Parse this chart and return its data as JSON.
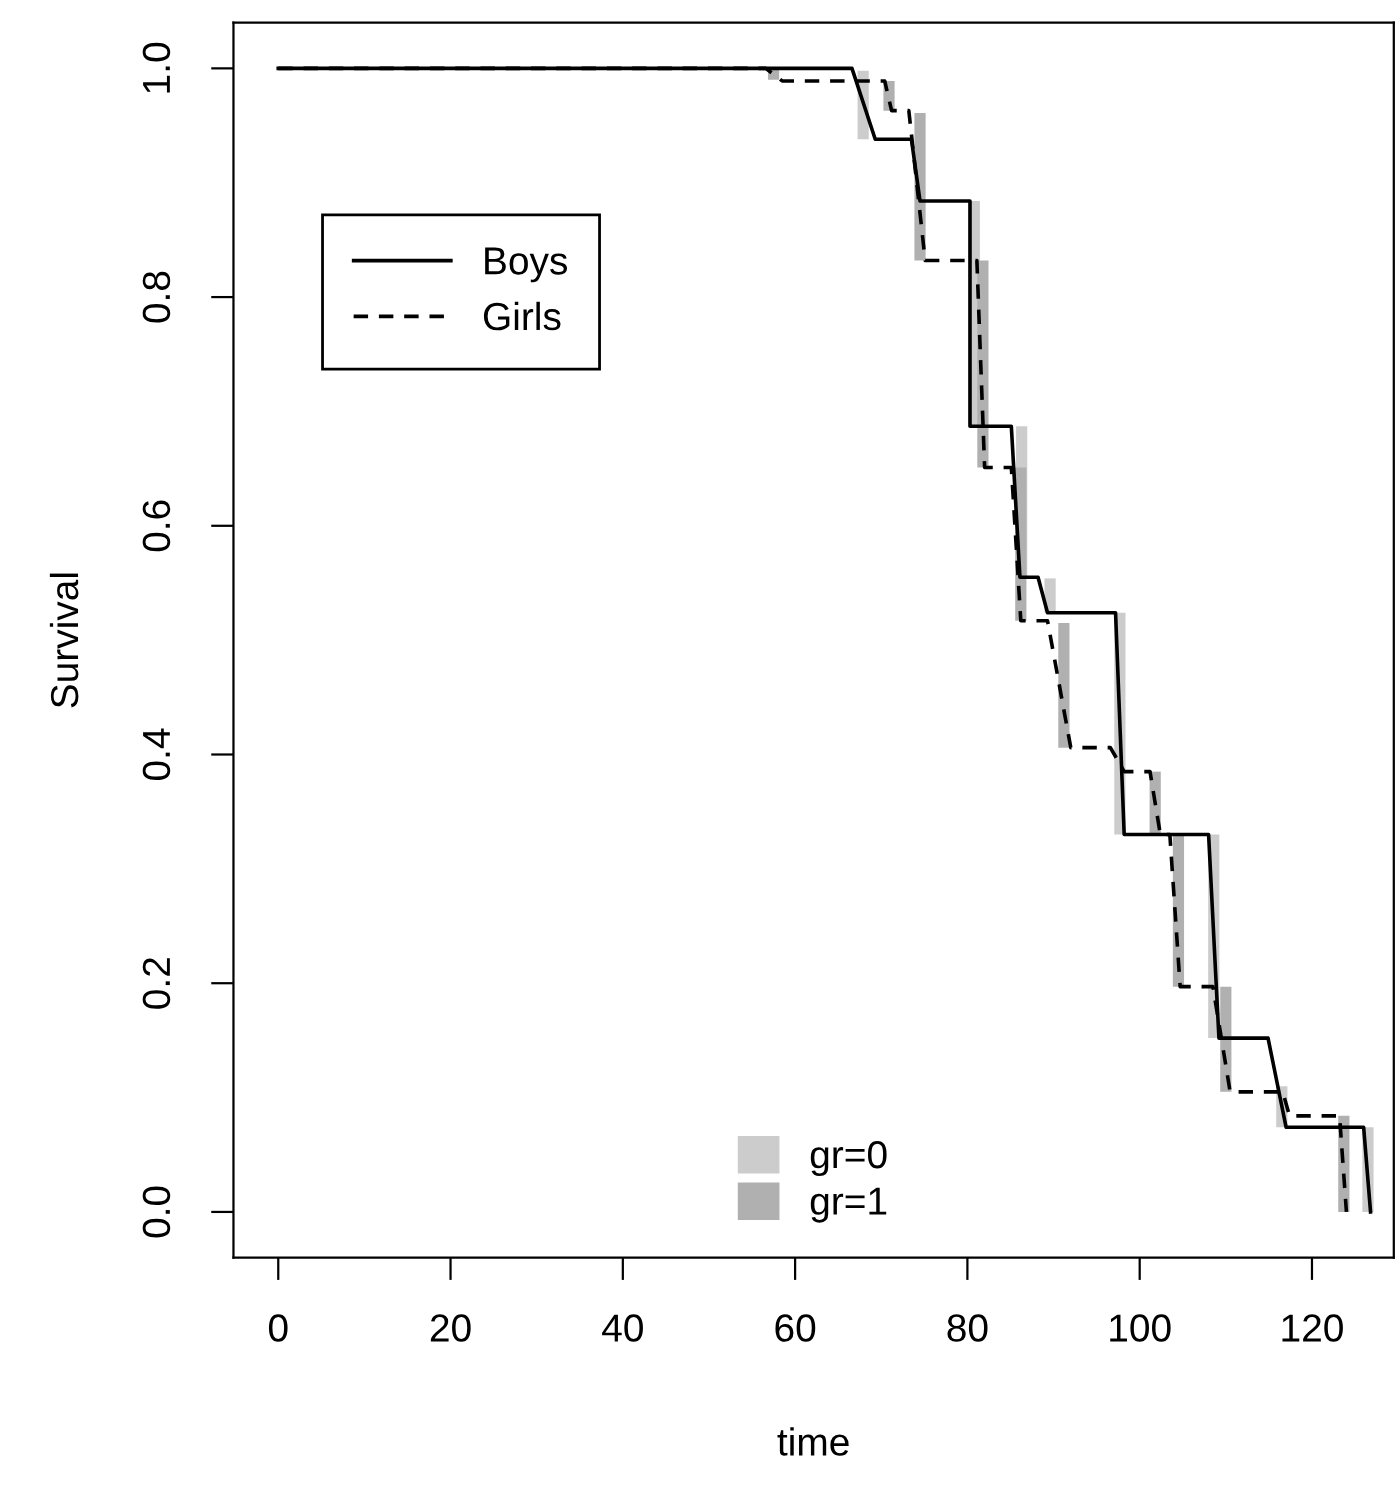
{
  "chart_data": {
    "type": "line",
    "xlabel": "time",
    "ylabel": "Survival",
    "xlim": [
      -5.2,
      129.5
    ],
    "ylim": [
      -0.04,
      1.04
    ],
    "xticks": [
      0,
      20,
      40,
      60,
      80,
      100,
      120
    ],
    "yticks": [
      {
        "value": 0,
        "label": "0.0"
      },
      {
        "value": 0.2,
        "label": "0.2"
      },
      {
        "value": 0.4,
        "label": "0.4"
      },
      {
        "value": 0.6,
        "label": "0.6"
      },
      {
        "value": 0.8,
        "label": "0.8"
      },
      {
        "value": 1,
        "label": "1.0"
      }
    ],
    "grid": false,
    "legend": "left",
    "marker": "none",
    "series": [
      {
        "name": "gr=0",
        "type": "bar",
        "color": "#cccccc",
        "x": [
          67.9,
          80.8,
          86.3,
          89.6,
          97.7,
          108.6,
          116.5,
          126.5
        ],
        "base": [
          0.938,
          0.687,
          0.555,
          0.524,
          0.33,
          0.152,
          0.074,
          0
        ],
        "values": [
          0.06,
          0.197,
          0.132,
          0.03,
          0.194,
          0.178,
          0.036,
          0.074
        ]
      },
      {
        "name": "gr=1",
        "type": "bar",
        "color": "#b0b0b0",
        "x": [
          57.5,
          70.9,
          74.5,
          81.8,
          86.2,
          91.2,
          101.8,
          104.5,
          110,
          123.7
        ],
        "base": [
          0.99,
          0.963,
          0.832,
          0.651,
          0.517,
          0.406,
          0.33,
          0.197,
          0.105,
          0
        ],
        "values": [
          0.01,
          0.026,
          0.129,
          0.181,
          0.134,
          0.109,
          0.055,
          0.133,
          0.092,
          0.084
        ]
      },
      {
        "name": "Boys",
        "color": "#000000",
        "line_style": "solid",
        "x": [
          0,
          66.6,
          69.3,
          73.5,
          74.5,
          80.3,
          80.3,
          85.1,
          86.1,
          88.2,
          89.3,
          97.2,
          98.2,
          108,
          109.2,
          114.9,
          117,
          126,
          126.8
        ],
        "values": [
          1,
          1,
          0.938,
          0.938,
          0.884,
          0.884,
          0.687,
          0.687,
          0.555,
          0.555,
          0.524,
          0.524,
          0.33,
          0.33,
          0.152,
          0.152,
          0.074,
          0.074,
          0
        ]
      },
      {
        "name": "Girls",
        "color": "#000000",
        "line_style": "dashed",
        "x": [
          0,
          56.6,
          58.5,
          70.4,
          71.2,
          73.2,
          75.1,
          81.1,
          82,
          85.1,
          86.2,
          89.3,
          92,
          96.6,
          98.2,
          101.2,
          102.4,
          103.5,
          104.7,
          108.5,
          110.5,
          116.6,
          117.4,
          123.2,
          124
        ],
        "values": [
          1,
          1,
          0.989,
          0.989,
          0.963,
          0.963,
          0.832,
          0.832,
          0.651,
          0.651,
          0.517,
          0.517,
          0.406,
          0.406,
          0.385,
          0.385,
          0.33,
          0.33,
          0.197,
          0.197,
          0.105,
          0.105,
          0.084,
          0.084,
          0
        ]
      }
    ]
  }
}
